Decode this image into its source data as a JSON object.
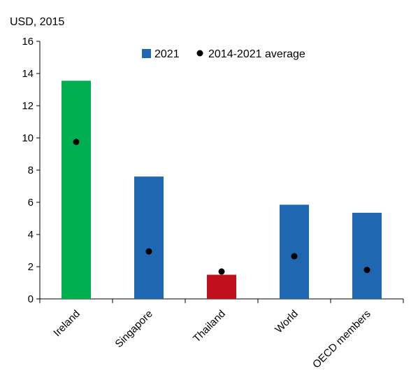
{
  "chart_data": {
    "type": "bar",
    "unit_label": "USD, 2015",
    "title": "",
    "xlabel": "",
    "ylabel": "",
    "ylim": [
      0,
      16
    ],
    "yticks": [
      0,
      2,
      4,
      6,
      8,
      10,
      12,
      14,
      16
    ],
    "grid": false,
    "legend_position": "top-right",
    "categories": [
      "Ireland",
      "Singapore",
      "Thailand",
      "World",
      "OECD members"
    ],
    "series": [
      {
        "name": "2021",
        "kind": "bar",
        "values": [
          13.55,
          7.6,
          1.5,
          5.85,
          5.35
        ],
        "color": "#1f67b1",
        "point_colors": [
          "#00b050",
          "#1f67b1",
          "#c0101e",
          "#1f67b1",
          "#1f67b1"
        ]
      },
      {
        "name": "2014-2021 average",
        "kind": "point",
        "values": [
          9.75,
          2.95,
          1.7,
          2.65,
          1.8
        ],
        "color": "#000000"
      }
    ]
  }
}
